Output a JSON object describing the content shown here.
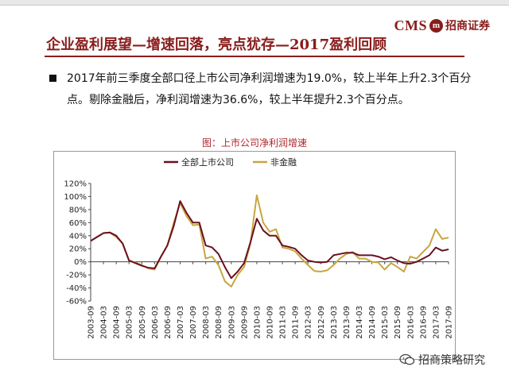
{
  "header": {
    "logo_text": "CMS",
    "logo_mark": "m",
    "logo_cn": "招商证券",
    "title": "企业盈利展望—增速回落，亮点犹存—2017盈利回顾"
  },
  "bullet": {
    "text": "2017年前三季度全部口径上市公司净利润增速为19.0%，较上半年上升2.3个百分点。剔除金融后，净利润增速为36.6%，较上半年提升2.3个百分点。"
  },
  "watermark": {
    "text": "招商策略研究",
    "icon": "wechat-icon"
  },
  "colors": {
    "brand": "#8a1c1c",
    "chart_title": "#b0262b",
    "series_all": "#6b1020",
    "series_nonfin": "#c8a640"
  },
  "chart_data": {
    "type": "line",
    "title": "图：上市公司净利润增速",
    "xlabel": "",
    "ylabel": "",
    "ylim": [
      -60,
      120
    ],
    "yticks": [
      120,
      100,
      80,
      60,
      40,
      20,
      0,
      -20,
      -40,
      -60
    ],
    "ytick_labels": [
      "120%",
      "100%",
      "80%",
      "60%",
      "40%",
      "20%",
      "0%",
      "-20%",
      "-40%",
      "-60%"
    ],
    "xtick_labels": [
      "2003-09",
      "2004-03",
      "2004-09",
      "2005-03",
      "2005-09",
      "2006-03",
      "2006-09",
      "2007-03",
      "2007-09",
      "2008-03",
      "2008-09",
      "2009-03",
      "2009-09",
      "2010-03",
      "2010-09",
      "2011-03",
      "2011-09",
      "2012-03",
      "2012-09",
      "2013-03",
      "2013-09",
      "2014-03",
      "2014-09",
      "2015-03",
      "2015-09",
      "2016-03",
      "2016-09",
      "2017-03",
      "2017-09"
    ],
    "legend_position": "top",
    "x": [
      "2003-09",
      "2003-12",
      "2004-03",
      "2004-06",
      "2004-09",
      "2004-12",
      "2005-03",
      "2005-06",
      "2005-09",
      "2005-12",
      "2006-03",
      "2006-06",
      "2006-09",
      "2006-12",
      "2007-03",
      "2007-06",
      "2007-09",
      "2007-12",
      "2008-03",
      "2008-06",
      "2008-09",
      "2008-12",
      "2009-03",
      "2009-06",
      "2009-09",
      "2009-12",
      "2010-03",
      "2010-06",
      "2010-09",
      "2010-12",
      "2011-03",
      "2011-06",
      "2011-09",
      "2011-12",
      "2012-03",
      "2012-06",
      "2012-09",
      "2012-12",
      "2013-03",
      "2013-06",
      "2013-09",
      "2013-12",
      "2014-03",
      "2014-06",
      "2014-09",
      "2014-12",
      "2015-03",
      "2015-06",
      "2015-09",
      "2015-12",
      "2016-03",
      "2016-06",
      "2016-09",
      "2016-12",
      "2017-03",
      "2017-06",
      "2017-09"
    ],
    "series": [
      {
        "name": "全部上市公司",
        "values": [
          32,
          38,
          44,
          45,
          40,
          28,
          2,
          -2,
          -6,
          -9,
          -10,
          8,
          25,
          55,
          93,
          75,
          60,
          60,
          25,
          22,
          12,
          -8,
          -25,
          -15,
          -2,
          30,
          66,
          48,
          40,
          40,
          25,
          23,
          20,
          10,
          2,
          0,
          -1,
          0,
          10,
          12,
          14,
          14,
          10,
          10,
          10,
          8,
          4,
          7,
          2,
          -2,
          -3,
          0,
          5,
          10,
          22,
          17,
          19
        ]
      },
      {
        "name": "非金融",
        "values": [
          32,
          38,
          44,
          45,
          38,
          28,
          2,
          -1,
          -5,
          -10,
          -12,
          8,
          25,
          60,
          90,
          70,
          56,
          57,
          5,
          8,
          -5,
          -30,
          -38,
          -20,
          -8,
          28,
          102,
          60,
          46,
          50,
          22,
          20,
          16,
          5,
          -5,
          -14,
          -15,
          -13,
          -5,
          5,
          12,
          15,
          5,
          5,
          0,
          -1,
          -12,
          -2,
          -8,
          -15,
          8,
          5,
          15,
          25,
          50,
          35,
          37
        ]
      }
    ]
  }
}
